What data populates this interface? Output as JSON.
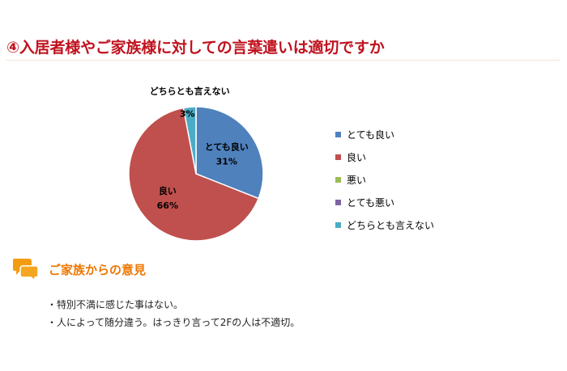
{
  "page": {
    "title": "④入居者様やご家族様に対しての言葉遣いは適切ですか"
  },
  "chart_data": {
    "type": "pie",
    "title": "",
    "categories": [
      "とても良い",
      "良い",
      "悪い",
      "とても悪い",
      "どちらとも言えない"
    ],
    "values": [
      31,
      66,
      0,
      0,
      3
    ],
    "unit": "%",
    "slice_labels": [
      {
        "category": "とても良い",
        "value": "31%"
      },
      {
        "category": "良い",
        "value": "66%"
      },
      {
        "category": "どちらとも言えない",
        "value": "3%"
      }
    ],
    "colors": [
      "#4f81bd",
      "#c0504d",
      "#9bbb59",
      "#8064a2",
      "#4bacc6"
    ],
    "legend_position": "right"
  },
  "opinions": {
    "heading": "ご家族からの意見",
    "icon": "speech-bubbles-icon",
    "icon_color": "#f39c12",
    "items": [
      "・特別不満に感じた事はない。",
      "・人によって随分違う。はっきり言って2Fの人は不適切。"
    ]
  }
}
